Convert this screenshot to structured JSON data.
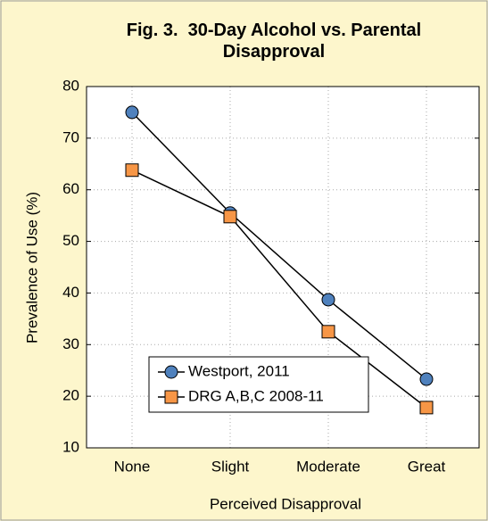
{
  "chart_data": {
    "type": "line",
    "title": "Fig. 3.  30-Day Alcohol vs. Parental Disapproval",
    "x_label": "Perceived Disapproval",
    "y_label": "Prevalence of Use (%)",
    "categories": [
      "None",
      "Slight",
      "Moderate",
      "Great"
    ],
    "series": [
      {
        "name": "Westport, 2011",
        "color": "#4f81bd",
        "marker": "circle",
        "values": [
          75,
          55.5,
          38.7,
          23.3
        ]
      },
      {
        "name": "DRG A,B,C 2008-11",
        "color": "#f79646",
        "marker": "square",
        "values": [
          63.8,
          54.8,
          32.5,
          17.8
        ]
      }
    ],
    "ylim": [
      10,
      80
    ],
    "yticks": [
      10,
      20,
      30,
      40,
      50,
      60,
      70,
      80
    ],
    "grid": true,
    "legend": "lower left"
  }
}
